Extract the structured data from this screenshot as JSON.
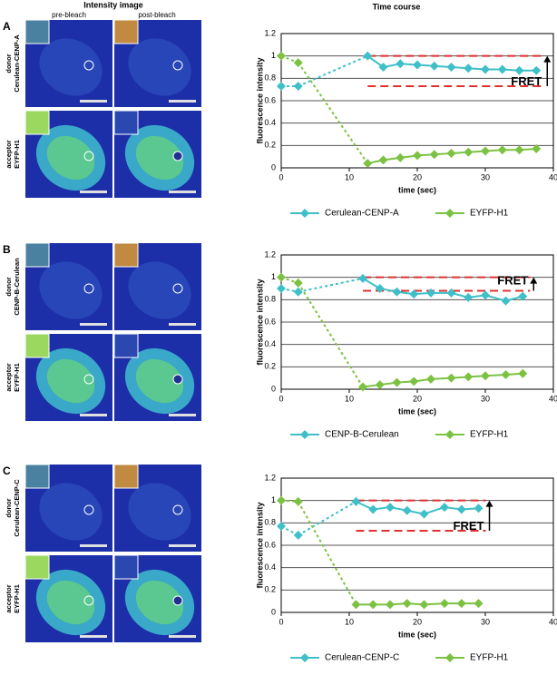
{
  "header": {
    "left": "Intensity image",
    "right": "Time course",
    "pre": "pre-bleach",
    "post": "post-bleach"
  },
  "panels": [
    {
      "label": "A",
      "donor": "donor",
      "donor_name": "Cerulean-CENP-A",
      "acceptor": "acceptor",
      "acceptor_name": "EYFP-H1"
    },
    {
      "label": "B",
      "donor": "donor",
      "donor_name": "CENP-B-Cerulean",
      "acceptor": "acceptor",
      "acceptor_name": "EYFP-H1"
    },
    {
      "label": "C",
      "donor": "donor",
      "donor_name": "Cerulean-CENP-C",
      "acceptor": "acceptor",
      "acceptor_name": "EYFP-H1"
    }
  ],
  "chart_data": [
    {
      "type": "line",
      "y_label": "fluorescence intensity",
      "x_label": "time (sec)",
      "annotation": "FRET",
      "xlim": [
        0,
        40
      ],
      "xticks": [
        0,
        10,
        20,
        30,
        40
      ],
      "ylim": [
        0,
        1.2
      ],
      "yticks": [
        0,
        0.2,
        0.4,
        0.6,
        0.8,
        1,
        1.2
      ],
      "grid": true,
      "hlines": [
        1,
        0.73
      ],
      "hline_color": "#e03030",
      "series": [
        {
          "name": "Cerulean-CENP-A",
          "color": "#3fbfc8",
          "x": [
            0,
            2.5,
            12.7,
            15,
            17.5,
            20,
            22.5,
            25,
            27.5,
            30,
            32.5,
            35,
            37.5
          ],
          "values": [
            0.73,
            0.73,
            1.0,
            0.9,
            0.93,
            0.92,
            0.91,
            0.9,
            0.89,
            0.88,
            0.88,
            0.87,
            0.87
          ]
        },
        {
          "name": "EYFP-H1",
          "color": "#7cc242",
          "x": [
            0,
            2.5,
            12.7,
            15,
            17.5,
            20,
            22.5,
            25,
            27.5,
            30,
            32.5,
            35,
            37.5
          ],
          "values": [
            1.0,
            0.94,
            0.04,
            0.07,
            0.09,
            0.11,
            0.12,
            0.13,
            0.14,
            0.15,
            0.16,
            0.16,
            0.17
          ]
        }
      ]
    },
    {
      "type": "line",
      "y_label": "fluorescence intensity",
      "x_label": "time (sec)",
      "annotation": "FRET",
      "xlim": [
        0,
        40
      ],
      "xticks": [
        0,
        10,
        20,
        30,
        40
      ],
      "ylim": [
        0,
        1.2
      ],
      "yticks": [
        0,
        0.2,
        0.4,
        0.6,
        0.8,
        1,
        1.2
      ],
      "grid": true,
      "hlines": [
        1,
        0.88
      ],
      "hline_color": "#e03030",
      "series": [
        {
          "name": "CENP-B-Cerulean",
          "color": "#3fbfc8",
          "x": [
            0,
            2.5,
            12,
            14.5,
            17,
            19.5,
            22,
            25,
            27.5,
            30,
            33,
            35.5
          ],
          "values": [
            0.9,
            0.87,
            0.99,
            0.9,
            0.87,
            0.85,
            0.86,
            0.86,
            0.82,
            0.84,
            0.79,
            0.83
          ]
        },
        {
          "name": "EYFP-H1",
          "color": "#7cc242",
          "x": [
            0,
            2.5,
            12,
            14.5,
            17,
            19.5,
            22,
            25,
            27.5,
            30,
            33,
            35.5
          ],
          "values": [
            1.0,
            0.95,
            0.02,
            0.04,
            0.06,
            0.07,
            0.09,
            0.1,
            0.11,
            0.12,
            0.13,
            0.14
          ]
        }
      ]
    },
    {
      "type": "line",
      "y_label": "fluorescence intensity",
      "x_label": "time (sec)",
      "annotation": "FRET",
      "xlim": [
        0,
        40
      ],
      "xticks": [
        0,
        10,
        20,
        30,
        40
      ],
      "ylim": [
        0,
        1.2
      ],
      "yticks": [
        0,
        0.2,
        0.4,
        0.6,
        0.8,
        1,
        1.2
      ],
      "grid": true,
      "hlines": [
        1,
        0.73
      ],
      "hline_color": "#e03030",
      "series": [
        {
          "name": "Cerulean-CENP-C",
          "color": "#3fbfc8",
          "x": [
            0,
            2.5,
            11,
            13.5,
            16,
            18.5,
            21,
            24,
            26.5,
            29
          ],
          "values": [
            0.77,
            0.69,
            0.99,
            0.92,
            0.94,
            0.91,
            0.88,
            0.94,
            0.92,
            0.93
          ]
        },
        {
          "name": "EYFP-H1",
          "color": "#7cc242",
          "x": [
            0,
            2.5,
            11,
            13.5,
            16,
            18.5,
            21,
            24,
            26.5,
            29
          ],
          "values": [
            1.0,
            0.99,
            0.07,
            0.07,
            0.07,
            0.08,
            0.07,
            0.08,
            0.08,
            0.08
          ]
        }
      ]
    }
  ]
}
